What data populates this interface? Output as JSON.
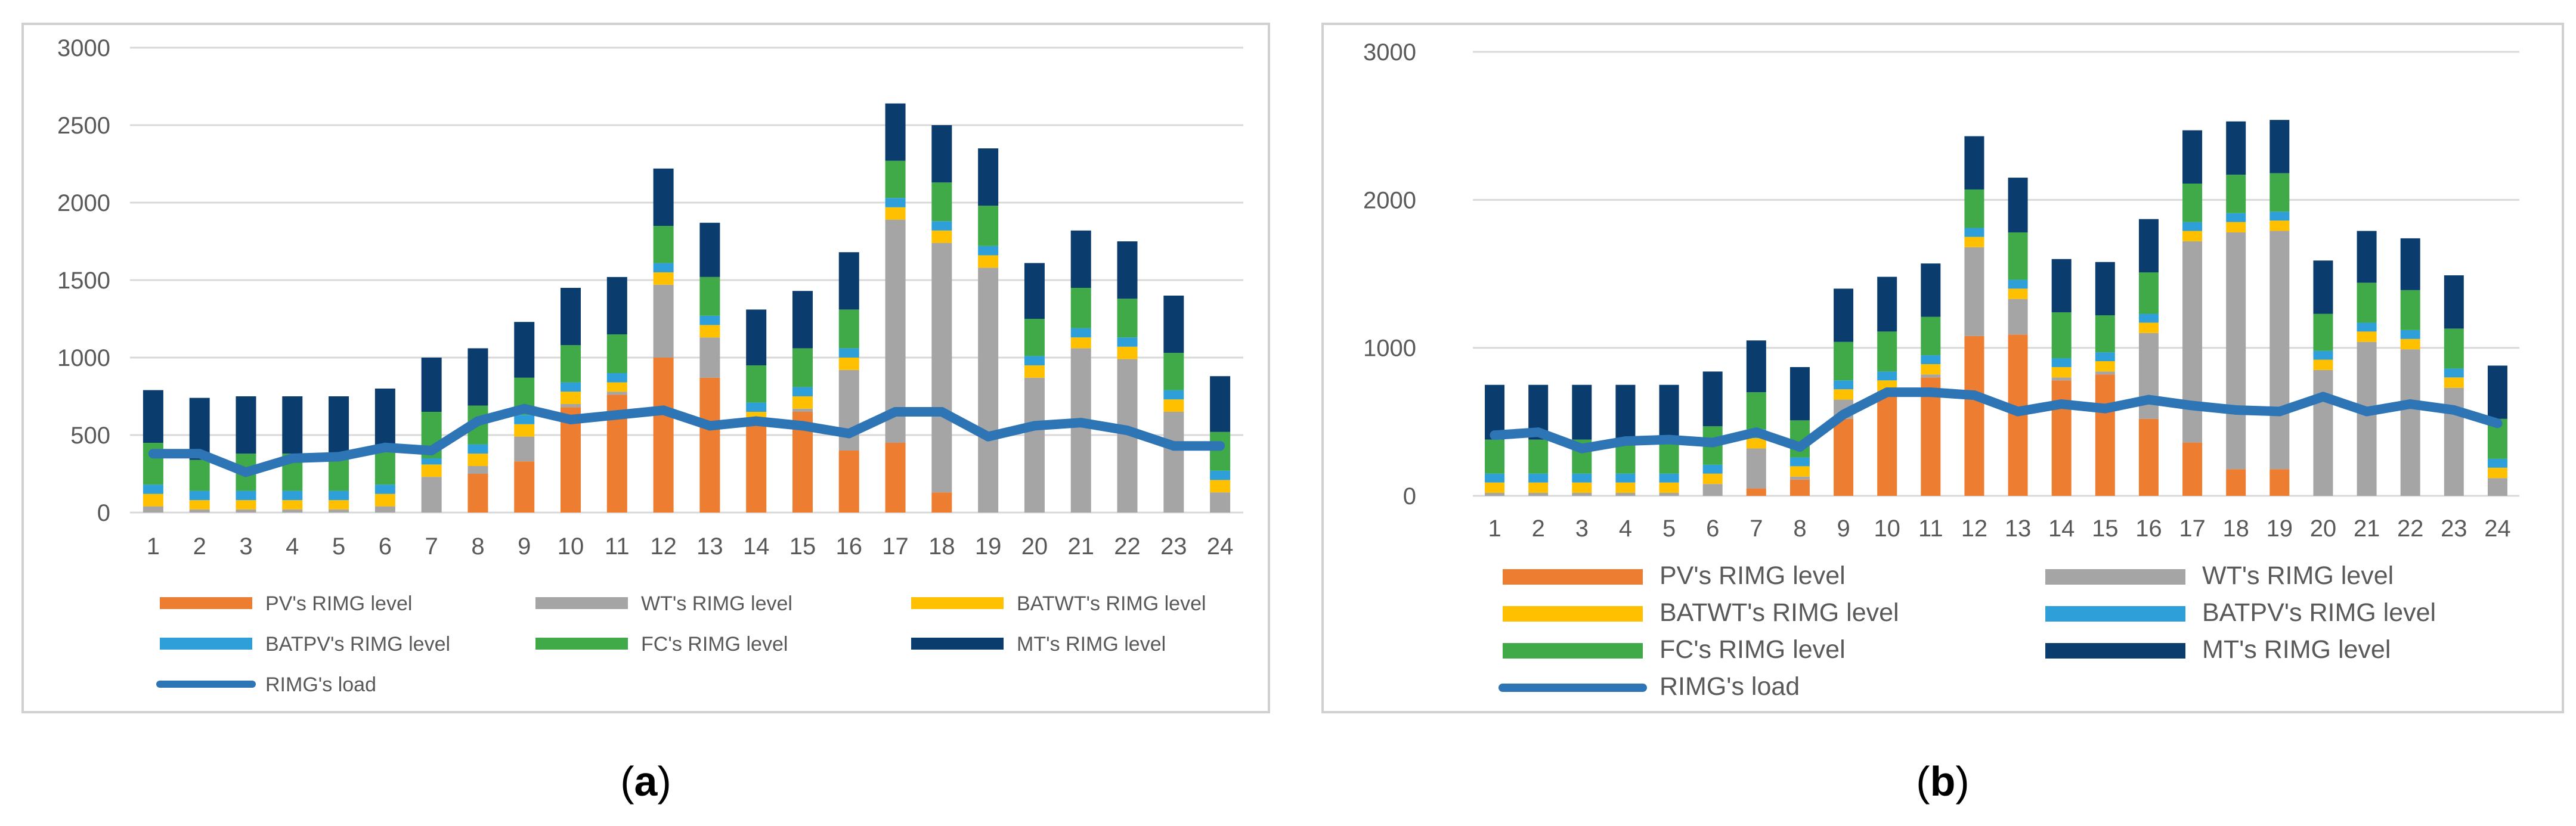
{
  "colors": {
    "pv": "#ED7D31",
    "wt": "#A5A5A5",
    "batwt": "#FFC000",
    "batpv": "#2E9FD9",
    "fc": "#3FAA47",
    "mt": "#0B3C6E",
    "load": "#2E75B6",
    "grid": "#D9D9D9",
    "frame": "#D0D0D0"
  },
  "chart_data": [
    {
      "type": "bar",
      "stacked": true,
      "caption": "(a)",
      "caption_parts": {
        "open": "(",
        "letter": "a",
        "close": ")"
      },
      "categories": [
        "1",
        "2",
        "3",
        "4",
        "5",
        "6",
        "7",
        "8",
        "9",
        "10",
        "11",
        "12",
        "13",
        "14",
        "15",
        "16",
        "17",
        "18",
        "19",
        "20",
        "21",
        "22",
        "23",
        "24"
      ],
      "ylim": [
        0,
        3000
      ],
      "yticks": [
        "0",
        "500",
        "1000",
        "1500",
        "2000",
        "2500",
        "3000"
      ],
      "grid": true,
      "legend_position": "bottom",
      "series": [
        {
          "name": "PV's RIMG level",
          "key": "pv",
          "values": [
            0,
            0,
            0,
            0,
            0,
            0,
            0,
            250,
            330,
            680,
            760,
            1000,
            870,
            570,
            650,
            400,
            450,
            130,
            0,
            0,
            0,
            0,
            0,
            0
          ]
        },
        {
          "name": "WT's RIMG level",
          "key": "wt",
          "values": [
            40,
            20,
            20,
            20,
            20,
            40,
            230,
            50,
            160,
            20,
            20,
            470,
            260,
            20,
            20,
            520,
            1440,
            1610,
            1580,
            870,
            1060,
            990,
            650,
            130
          ]
        },
        {
          "name": "BATWT's RIMG level",
          "key": "batwt",
          "values": [
            80,
            60,
            60,
            60,
            60,
            80,
            80,
            80,
            80,
            80,
            60,
            80,
            80,
            60,
            80,
            80,
            80,
            80,
            80,
            80,
            70,
            80,
            80,
            80
          ]
        },
        {
          "name": "BATPV's RIMG level",
          "key": "batpv",
          "values": [
            60,
            60,
            60,
            60,
            60,
            60,
            40,
            60,
            60,
            60,
            60,
            60,
            60,
            60,
            60,
            60,
            60,
            60,
            60,
            60,
            60,
            60,
            60,
            60
          ]
        },
        {
          "name": "FC's RIMG level",
          "key": "fc",
          "values": [
            270,
            200,
            240,
            240,
            240,
            230,
            300,
            250,
            240,
            240,
            250,
            240,
            250,
            240,
            250,
            250,
            240,
            250,
            260,
            240,
            260,
            250,
            240,
            250
          ]
        },
        {
          "name": "MT's RIMG level",
          "key": "mt",
          "values": [
            340,
            400,
            370,
            370,
            370,
            390,
            350,
            370,
            360,
            370,
            370,
            370,
            350,
            360,
            370,
            370,
            370,
            370,
            370,
            360,
            370,
            370,
            370,
            360
          ]
        }
      ],
      "line": {
        "name": "RIMG's load",
        "key": "load",
        "values": [
          380,
          380,
          260,
          350,
          360,
          420,
          400,
          590,
          670,
          600,
          630,
          660,
          560,
          590,
          560,
          510,
          650,
          650,
          490,
          560,
          580,
          530,
          430,
          430
        ]
      }
    },
    {
      "type": "bar",
      "stacked": true,
      "caption": "(b)",
      "caption_parts": {
        "open": "(",
        "letter": "b",
        "close": ")"
      },
      "categories": [
        "1",
        "2",
        "3",
        "4",
        "5",
        "6",
        "7",
        "8",
        "9",
        "10",
        "11",
        "12",
        "13",
        "14",
        "15",
        "16",
        "17",
        "18",
        "19",
        "20",
        "21",
        "22",
        "23",
        "24"
      ],
      "ylim": [
        0,
        3000
      ],
      "yticks": [
        "0",
        "1000",
        "2000",
        "3000"
      ],
      "grid": true,
      "legend_position": "bottom",
      "series": [
        {
          "name": "PV's RIMG level",
          "key": "pv",
          "values": [
            0,
            0,
            0,
            0,
            0,
            0,
            50,
            110,
            520,
            690,
            800,
            1080,
            1090,
            780,
            820,
            520,
            360,
            180,
            180,
            0,
            0,
            0,
            0,
            0
          ]
        },
        {
          "name": "WT's RIMG level",
          "key": "wt",
          "values": [
            20,
            20,
            20,
            20,
            20,
            80,
            270,
            20,
            130,
            20,
            20,
            600,
            240,
            20,
            20,
            580,
            1360,
            1600,
            1610,
            850,
            1040,
            990,
            730,
            120
          ]
        },
        {
          "name": "BATWT's RIMG level",
          "key": "batwt",
          "values": [
            70,
            70,
            70,
            70,
            70,
            70,
            70,
            70,
            70,
            70,
            70,
            70,
            70,
            70,
            70,
            70,
            70,
            70,
            70,
            70,
            70,
            70,
            70,
            70
          ]
        },
        {
          "name": "BATPV's RIMG level",
          "key": "batpv",
          "values": [
            60,
            60,
            60,
            60,
            60,
            60,
            60,
            60,
            60,
            60,
            60,
            60,
            60,
            60,
            60,
            60,
            60,
            60,
            60,
            60,
            60,
            60,
            60,
            60
          ]
        },
        {
          "name": "FC's RIMG level",
          "key": "fc",
          "values": [
            230,
            230,
            230,
            230,
            230,
            260,
            250,
            250,
            260,
            270,
            260,
            260,
            320,
            310,
            250,
            280,
            260,
            260,
            260,
            250,
            270,
            270,
            270,
            270
          ]
        },
        {
          "name": "MT's RIMG level",
          "key": "mt",
          "values": [
            370,
            370,
            370,
            370,
            370,
            370,
            350,
            360,
            360,
            370,
            360,
            360,
            370,
            360,
            360,
            360,
            360,
            360,
            360,
            360,
            350,
            350,
            360,
            360
          ]
        }
      ],
      "line": {
        "name": "RIMG's load",
        "key": "load",
        "values": [
          410,
          430,
          320,
          370,
          380,
          360,
          430,
          330,
          550,
          700,
          700,
          680,
          570,
          620,
          590,
          650,
          610,
          580,
          570,
          670,
          570,
          620,
          580,
          490
        ]
      }
    }
  ]
}
